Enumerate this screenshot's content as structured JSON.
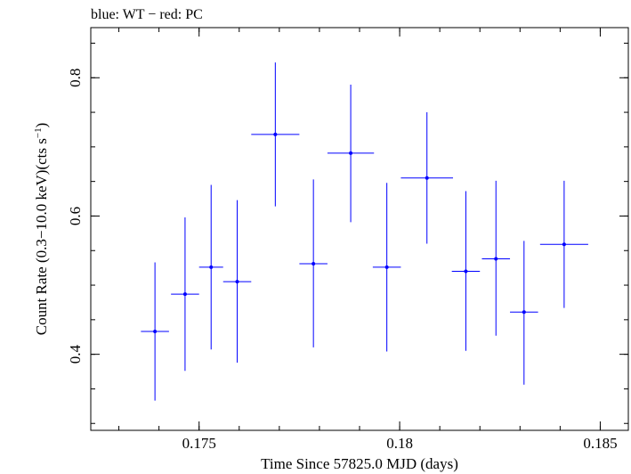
{
  "chart_data": {
    "type": "scatter",
    "title": "blue: WT − red: PC",
    "xlabel": "Time Since 57825.0 MJD (days)",
    "ylabel_prefix": "Count Rate (0.3−10.0 keV)(cts s",
    "ylabel_sup": "−1",
    "ylabel_suffix": ")",
    "xlim": [
      0.1723,
      0.1857
    ],
    "ylim": [
      0.29,
      0.8725
    ],
    "x_ticks": [
      0.175,
      0.18,
      0.185
    ],
    "x_tick_labels": [
      "0.175",
      "0.18",
      "0.185"
    ],
    "y_ticks": [
      0.4,
      0.6,
      0.8
    ],
    "y_tick_labels": [
      "0.4",
      "0.6",
      "0.8"
    ],
    "x_minor_step": 0.001,
    "y_minor_step": 0.05,
    "color": "#0000ff",
    "series": [
      {
        "name": "WT",
        "points": [
          {
            "x": 0.1739,
            "xerr": 0.00035,
            "y": 0.433,
            "yerr_lo": 0.1,
            "yerr_hi": 0.1
          },
          {
            "x": 0.17465,
            "xerr": 0.00035,
            "y": 0.487,
            "yerr_lo": 0.111,
            "yerr_hi": 0.111
          },
          {
            "x": 0.1753,
            "xerr": 0.0003,
            "y": 0.526,
            "yerr_lo": 0.119,
            "yerr_hi": 0.119
          },
          {
            "x": 0.17595,
            "xerr": 0.00035,
            "y": 0.505,
            "yerr_lo": 0.117,
            "yerr_hi": 0.118
          },
          {
            "x": 0.1769,
            "xerr": 0.0006,
            "y": 0.718,
            "yerr_lo": 0.104,
            "yerr_hi": 0.104
          },
          {
            "x": 0.17785,
            "xerr": 0.00035,
            "y": 0.531,
            "yerr_lo": 0.121,
            "yerr_hi": 0.122
          },
          {
            "x": 0.17878,
            "xerr": 0.00058,
            "y": 0.691,
            "yerr_lo": 0.1,
            "yerr_hi": 0.099
          },
          {
            "x": 0.17968,
            "xerr": 0.00035,
            "y": 0.526,
            "yerr_lo": 0.122,
            "yerr_hi": 0.122
          },
          {
            "x": 0.18068,
            "xerr": 0.00065,
            "y": 0.655,
            "yerr_lo": 0.095,
            "yerr_hi": 0.095
          },
          {
            "x": 0.18165,
            "xerr": 0.00035,
            "y": 0.52,
            "yerr_lo": 0.115,
            "yerr_hi": 0.116
          },
          {
            "x": 0.1824,
            "xerr": 0.00035,
            "y": 0.538,
            "yerr_lo": 0.111,
            "yerr_hi": 0.113
          },
          {
            "x": 0.1831,
            "xerr": 0.00035,
            "y": 0.461,
            "yerr_lo": 0.105,
            "yerr_hi": 0.103
          },
          {
            "x": 0.1841,
            "xerr": 0.0006,
            "y": 0.559,
            "yerr_lo": 0.092,
            "yerr_hi": 0.092
          }
        ]
      }
    ]
  }
}
